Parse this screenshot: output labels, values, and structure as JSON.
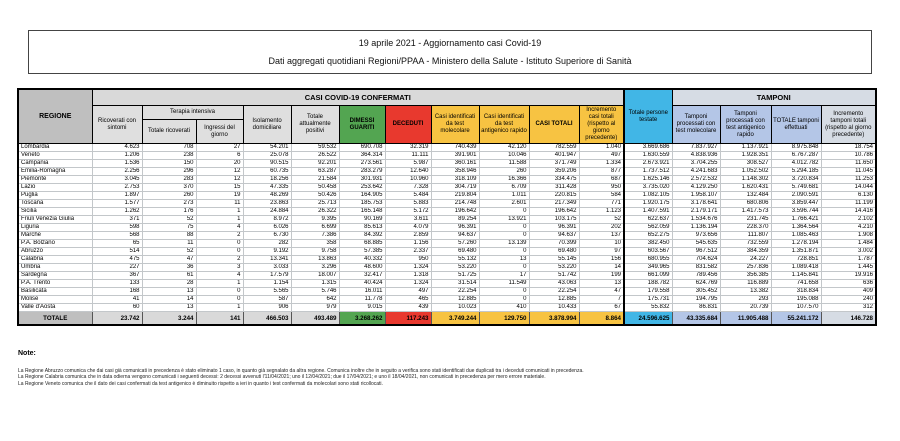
{
  "header": {
    "line1": "19 aprile 2021 - Aggiornamento casi Covid-19",
    "line2": "Dati aggregati quotidiani Regioni/PPAA - Ministero della Salute - Istituto Superiore di Sanità"
  },
  "colors": {
    "green_dimessi": "#53A551",
    "red_deceduti": "#E8392E",
    "orange_casi": "#F7C342",
    "blue_testate": "#41B6E6",
    "periwinkle_tamponi": "#B4C6E7",
    "bluegray_incremento": "#D6DCE4",
    "gray_regione": "#BFBFBF",
    "lightgray_band": "#D9D9D9"
  },
  "table": {
    "headers": {
      "regione": "REGIONE",
      "casi_confermati": "CASI COVID-19 CONFERMATI",
      "ricoverati": "Ricoverati con sintomi",
      "terapia_intensiva": "Terapia intensiva",
      "ti_totale": "Totale ricoverati",
      "ti_ingressi": "Ingressi del giorno",
      "isolamento": "Isolamento domiciliare",
      "attualmente_positivi": "Totale attualmente positivi",
      "dimessi": "DIMESSI GUARITI",
      "deceduti": "DECEDUTI",
      "casi_molecolare": "Casi identificati da test molecolare",
      "casi_antigenico": "Casi identificati da test antigenico rapido",
      "casi_totali": "CASI TOTALI",
      "incremento_casi": "Incremento casi totali (rispetto al giorno precedente)",
      "persone_testate": "Totale persone testate",
      "tamponi": "TAMPONI",
      "tamponi_molecolare": "Tamponi processati con test molecolare",
      "tamponi_antigenico": "Tamponi processati con test antigenico rapido",
      "tamponi_totale": "TOTALE tamponi effettuati",
      "incremento_tamponi": "Incremento tamponi totali (rispetto al giorno precedente)"
    },
    "rows": [
      {
        "region": "Lombardia",
        "values": [
          "4.623",
          "708",
          "27",
          "54.201",
          "59.532",
          "690.708",
          "32.319",
          "740.439",
          "42.120",
          "782.559",
          "1.040",
          "3.669.686",
          "7.837.927",
          "1.137.921",
          "8.975.848",
          "18.754"
        ]
      },
      {
        "region": "Veneto",
        "values": [
          "1.206",
          "238",
          "6",
          "25.078",
          "26.522",
          "364.314",
          "11.111",
          "391.901",
          "10.046",
          "401.947",
          "497",
          "1.630.559",
          "4.838.936",
          "1.928.351",
          "6.767.287",
          "10.786"
        ]
      },
      {
        "region": "Campania",
        "values": [
          "1.536",
          "150",
          "20",
          "90.515",
          "92.201",
          "273.561",
          "5.987",
          "360.161",
          "11.588",
          "371.749",
          "1.334",
          "2.673.921",
          "3.704.255",
          "308.527",
          "4.012.782",
          "11.650"
        ]
      },
      {
        "region": "Emilia-Romagna",
        "values": [
          "2.256",
          "296",
          "12",
          "60.735",
          "63.287",
          "283.279",
          "12.640",
          "358.946",
          "260",
          "359.206",
          "877",
          "1.737.512",
          "4.241.683",
          "1.052.502",
          "5.294.185",
          "11.045"
        ]
      },
      {
        "region": "Piemonte",
        "values": [
          "3.045",
          "283",
          "12",
          "18.256",
          "21.584",
          "301.931",
          "10.960",
          "318.109",
          "16.366",
          "334.475",
          "687",
          "1.625.146",
          "2.572.532",
          "1.148.302",
          "3.720.834",
          "11.253"
        ]
      },
      {
        "region": "Lazio",
        "values": [
          "2.753",
          "370",
          "15",
          "47.335",
          "50.458",
          "253.642",
          "7.328",
          "304.719",
          "6.709",
          "311.428",
          "950",
          "3.735.020",
          "4.129.250",
          "1.620.431",
          "5.749.681",
          "14.044"
        ]
      },
      {
        "region": "Puglia",
        "values": [
          "1.897",
          "260",
          "19",
          "48.269",
          "50.426",
          "164.905",
          "5.484",
          "219.804",
          "1.011",
          "220.815",
          "584",
          "1.082.105",
          "1.958.107",
          "132.484",
          "2.090.591",
          "6.130"
        ]
      },
      {
        "region": "Toscana",
        "values": [
          "1.577",
          "273",
          "11",
          "23.863",
          "25.713",
          "185.753",
          "5.883",
          "214.748",
          "2.601",
          "217.349",
          "771",
          "1.920.175",
          "3.178.641",
          "680.806",
          "3.859.447",
          "11.199"
        ]
      },
      {
        "region": "Sicilia",
        "values": [
          "1.262",
          "176",
          "1",
          "24.884",
          "26.322",
          "165.148",
          "5.172",
          "196.642",
          "0",
          "196.642",
          "1.123",
          "1.407.591",
          "2.179.171",
          "1.417.573",
          "3.596.744",
          "14.416"
        ]
      },
      {
        "region": "Friuli Venezia Giulia",
        "values": [
          "371",
          "52",
          "1",
          "8.972",
          "9.395",
          "90.169",
          "3.611",
          "89.254",
          "13.921",
          "103.175",
          "52",
          "622.637",
          "1.534.676",
          "231.745",
          "1.766.421",
          "2.102"
        ]
      },
      {
        "region": "Liguria",
        "values": [
          "598",
          "75",
          "4",
          "6.026",
          "6.699",
          "85.613",
          "4.079",
          "96.391",
          "0",
          "96.391",
          "202",
          "562.059",
          "1.136.194",
          "228.370",
          "1.364.564",
          "4.210"
        ]
      },
      {
        "region": "Marche",
        "values": [
          "568",
          "88",
          "2",
          "6.730",
          "7.386",
          "84.392",
          "2.859",
          "94.637",
          "0",
          "94.637",
          "137",
          "652.275",
          "973.656",
          "111.807",
          "1.085.463",
          "1.908"
        ]
      },
      {
        "region": "P.A. Bolzano",
        "values": [
          "65",
          "11",
          "0",
          "282",
          "358",
          "68.885",
          "1.156",
          "57.260",
          "13.139",
          "70.399",
          "10",
          "382.450",
          "545.635",
          "732.559",
          "1.278.194",
          "1.484"
        ]
      },
      {
        "region": "Abruzzo",
        "values": [
          "514",
          "52",
          "0",
          "9.192",
          "9.758",
          "57.385",
          "2.337",
          "69.480",
          "0",
          "69.480",
          "97",
          "603.567",
          "967.512",
          "384.359",
          "1.351.871",
          "3.002"
        ]
      },
      {
        "region": "Calabria",
        "values": [
          "475",
          "47",
          "2",
          "13.341",
          "13.863",
          "40.332",
          "950",
          "55.132",
          "13",
          "55.145",
          "156",
          "680.955",
          "704.624",
          "24.227",
          "728.851",
          "1.787"
        ]
      },
      {
        "region": "Umbria",
        "values": [
          "227",
          "36",
          "3",
          "3.033",
          "3.296",
          "48.600",
          "1.324",
          "53.220",
          "0",
          "53.220",
          "14",
          "349.965",
          "831.582",
          "257.836",
          "1.089.418",
          "1.445"
        ]
      },
      {
        "region": "Sardegna",
        "values": [
          "367",
          "61",
          "4",
          "17.579",
          "18.007",
          "32.417",
          "1.318",
          "51.725",
          "17",
          "51.742",
          "199",
          "661.099",
          "789.456",
          "356.385",
          "1.145.841",
          "19.916"
        ]
      },
      {
        "region": "P.A. Trento",
        "values": [
          "133",
          "28",
          "1",
          "1.154",
          "1.315",
          "40.424",
          "1.324",
          "31.514",
          "11.549",
          "43.063",
          "13",
          "188.782",
          "624.769",
          "116.889",
          "741.658",
          "636"
        ]
      },
      {
        "region": "Basilicata",
        "values": [
          "168",
          "13",
          "0",
          "5.565",
          "5.746",
          "16.011",
          "497",
          "22.254",
          "0",
          "22.254",
          "47",
          "179.558",
          "305.452",
          "13.382",
          "318.834",
          "409"
        ]
      },
      {
        "region": "Molise",
        "values": [
          "41",
          "14",
          "0",
          "587",
          "642",
          "11.778",
          "465",
          "12.885",
          "0",
          "12.885",
          "7",
          "175.731",
          "194.795",
          "293",
          "195.088",
          "240"
        ]
      },
      {
        "region": "Valle d'Aosta",
        "values": [
          "60",
          "13",
          "1",
          "906",
          "979",
          "9.015",
          "439",
          "10.023",
          "410",
          "10.433",
          "67",
          "55.832",
          "86.831",
          "20.739",
          "107.570",
          "312"
        ]
      }
    ],
    "totale": {
      "label": "TOTALE",
      "values": [
        "23.742",
        "3.244",
        "141",
        "466.503",
        "493.489",
        "3.268.262",
        "117.243",
        "3.749.244",
        "129.750",
        "3.878.994",
        "8.864",
        "24.596.625",
        "43.335.684",
        "11.905.488",
        "55.241.172",
        "146.728"
      ]
    }
  },
  "notes": {
    "label": "Note:",
    "lines": [
      "La Regione Abruzzo comunica che dai casi già comunicati in precedenza è stato eliminato 1 caso, in quanto già segnalato da altra regione. Comunica inoltre che in seguito a verifica sono stati identificati due duplicati tra i deceduti comunicati in precedenza.",
      "La Regione Calabria comunica che in data odierna vengono comunicati i seguenti decessi: 2 decessi avvenuti l'11/04/2021; uno il 12/04/2021; due il 17/04/2021; e uno il 18/04/2021, non comunicati in precedenza per mero errore materiale.",
      "La Regione Veneto comunica che il dato dei casi confermati da test antigenico è diminuito rispetto a ieri in quanto i test confermati da molecolari sono stati ricollocati."
    ]
  }
}
